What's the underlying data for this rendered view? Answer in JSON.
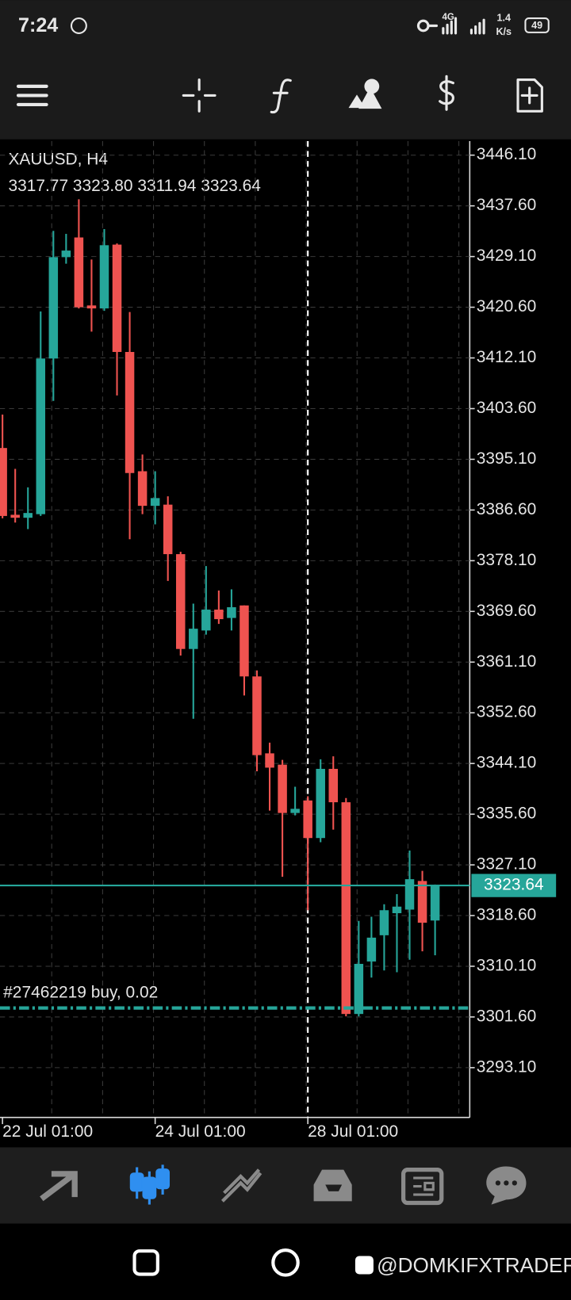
{
  "status_bar": {
    "time": "7:24",
    "network": "4G",
    "speed": "1.4",
    "speed_unit": "K/s",
    "battery": "49"
  },
  "chart_data": {
    "type": "candlestick",
    "symbol": "XAUUSD, H4",
    "ohlc_text": "3317.77 3323.80 3311.94 3323.64",
    "categories": [
      "22 Jul 01:00",
      null,
      null,
      null,
      null,
      null,
      null,
      null,
      null,
      null,
      null,
      null,
      "24 Jul 01:00",
      null,
      null,
      null,
      null,
      null,
      null,
      null,
      null,
      null,
      null,
      null,
      "28 Jul 01:00",
      null,
      null,
      null,
      null,
      null,
      null,
      null,
      null,
      null,
      null
    ],
    "open": [
      3397.0,
      3385.8,
      3385.3,
      3385.9,
      3412.0,
      3429.0,
      3432.3,
      3420.9,
      3420.4,
      3431.1,
      3413.1,
      3393.1,
      3387.3,
      3387.5,
      3379.2,
      3363.3,
      3366.4,
      3369.9,
      3368.5,
      3370.6,
      3358.7,
      3345.8,
      3343.9,
      3335.8,
      3337.9,
      3331.6,
      3343.2,
      3337.6,
      3302.1,
      3310.9,
      3315.3,
      3319.0,
      3319.6,
      3324.4,
      3317.77
    ],
    "high": [
      3402.6,
      3393.5,
      3390.4,
      3419.9,
      3433.4,
      3432.9,
      3438.7,
      3428.6,
      3433.7,
      3431.3,
      3419.8,
      3395.9,
      3393.1,
      3388.9,
      3379.6,
      3370.9,
      3377.2,
      3373.1,
      3373.3,
      3370.6,
      3359.7,
      3347.6,
      3344.7,
      3340.2,
      3338.6,
      3344.8,
      3345.3,
      3338.3,
      3317.7,
      3318.4,
      3320.5,
      3322.2,
      3329.5,
      3326.1,
      3323.8
    ],
    "low": [
      3385.2,
      3384.5,
      3383.4,
      3385.6,
      3404.9,
      3427.9,
      3420.4,
      3416.5,
      3420.0,
      3405.8,
      3381.7,
      3385.9,
      3384.2,
      3374.7,
      3362.2,
      3351.6,
      3365.7,
      3367.5,
      3366.4,
      3355.5,
      3342.8,
      3336.2,
      3325.1,
      3335.4,
      3319.5,
      3330.9,
      3333.0,
      3301.7,
      3301.7,
      3308.2,
      3309.4,
      3309.1,
      3311.2,
      3312.6,
      3311.94
    ],
    "close": [
      3385.6,
      3385.3,
      3386.1,
      3412.0,
      3429.0,
      3430.1,
      3420.6,
      3420.4,
      3431.0,
      3413.1,
      3392.8,
      3387.3,
      3388.6,
      3379.2,
      3363.3,
      3366.7,
      3369.9,
      3368.3,
      3370.3,
      3358.7,
      3345.5,
      3343.4,
      3335.8,
      3336.5,
      3331.6,
      3343.2,
      3337.6,
      3302.1,
      3310.5,
      3314.9,
      3319.5,
      3320.1,
      3324.7,
      3317.4,
      3323.64
    ],
    "up_color": "#26a69a",
    "down_color": "#ef5350",
    "ylim": [
      3284.75,
      3448.46
    ],
    "yticks": [
      {
        "value": 3446.1,
        "label": "3446.10"
      },
      {
        "value": 3437.6,
        "label": "3437.60"
      },
      {
        "value": 3429.1,
        "label": "3429.10"
      },
      {
        "value": 3420.6,
        "label": "3420.60"
      },
      {
        "value": 3412.1,
        "label": "3412.10"
      },
      {
        "value": 3403.6,
        "label": "3403.60"
      },
      {
        "value": 3395.1,
        "label": "3395.10"
      },
      {
        "value": 3386.6,
        "label": "3386.60"
      },
      {
        "value": 3378.1,
        "label": "3378.10"
      },
      {
        "value": 3369.6,
        "label": "3369.60"
      },
      {
        "value": 3361.1,
        "label": "3361.10"
      },
      {
        "value": 3352.6,
        "label": "3352.60"
      },
      {
        "value": 3344.1,
        "label": "3344.10"
      },
      {
        "value": 3335.6,
        "label": "3335.60"
      },
      {
        "value": 3327.1,
        "label": "3327.10"
      },
      {
        "value": 3318.6,
        "label": "3318.60"
      },
      {
        "value": 3310.1,
        "label": "3310.10"
      },
      {
        "value": 3301.6,
        "label": "3301.60"
      },
      {
        "value": 3293.1,
        "label": "3293.10"
      }
    ],
    "grid": true,
    "current_price": 3323.64,
    "current_price_color": "#26a69a",
    "order": {
      "label": "#27462219 buy, 0.02",
      "price": 3303.1
    }
  },
  "watermark": "@DOMKIFXTRADER"
}
